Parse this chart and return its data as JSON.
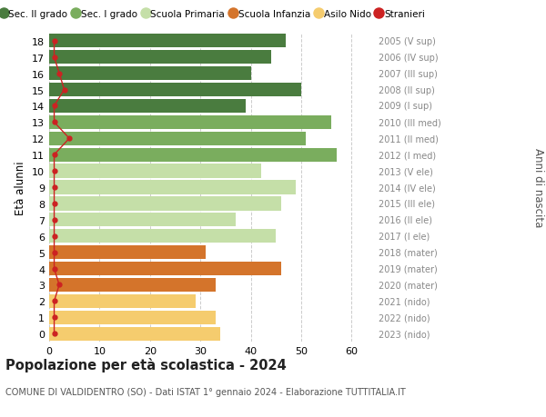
{
  "ages": [
    18,
    17,
    16,
    15,
    14,
    13,
    12,
    11,
    10,
    9,
    8,
    7,
    6,
    5,
    4,
    3,
    2,
    1,
    0
  ],
  "values": [
    47,
    44,
    40,
    50,
    39,
    56,
    51,
    57,
    42,
    49,
    46,
    37,
    45,
    31,
    46,
    33,
    29,
    33,
    34
  ],
  "bar_colors": [
    "#4a7c3f",
    "#4a7c3f",
    "#4a7c3f",
    "#4a7c3f",
    "#4a7c3f",
    "#7aad5e",
    "#7aad5e",
    "#7aad5e",
    "#c5dfa8",
    "#c5dfa8",
    "#c5dfa8",
    "#c5dfa8",
    "#c5dfa8",
    "#d4742b",
    "#d4742b",
    "#d4742b",
    "#f5cc6e",
    "#f5cc6e",
    "#f5cc6e"
  ],
  "right_labels": [
    "2005 (V sup)",
    "2006 (IV sup)",
    "2007 (III sup)",
    "2008 (II sup)",
    "2009 (I sup)",
    "2010 (III med)",
    "2011 (II med)",
    "2012 (I med)",
    "2013 (V ele)",
    "2014 (IV ele)",
    "2015 (III ele)",
    "2016 (II ele)",
    "2017 (I ele)",
    "2018 (mater)",
    "2019 (mater)",
    "2020 (mater)",
    "2021 (nido)",
    "2022 (nido)",
    "2023 (nido)"
  ],
  "legend_labels": [
    "Sec. II grado",
    "Sec. I grado",
    "Scuola Primaria",
    "Scuola Infanzia",
    "Asilo Nido",
    "Stranieri"
  ],
  "legend_colors": [
    "#4a7c3f",
    "#7aad5e",
    "#c5dfa8",
    "#d4742b",
    "#f5cc6e",
    "#cc2222"
  ],
  "ylabel": "Età alunni",
  "right_ylabel": "Anni di nascita",
  "title": "Popolazione per età scolastica - 2024",
  "subtitle": "COMUNE DI VALDIDENTRO (SO) - Dati ISTAT 1° gennaio 2024 - Elaborazione TUTTITALIA.IT",
  "xlim": [
    0,
    65
  ],
  "xticks": [
    0,
    10,
    20,
    30,
    40,
    50,
    60
  ],
  "stranieri_color": "#cc2222",
  "stranieri_x": [
    1,
    1,
    2,
    3,
    1,
    1,
    4,
    1,
    1,
    1,
    1,
    1,
    1,
    1,
    1,
    2,
    1,
    1,
    1
  ],
  "bar_height": 0.85,
  "background_color": "#ffffff",
  "grid_color": "#cccccc"
}
